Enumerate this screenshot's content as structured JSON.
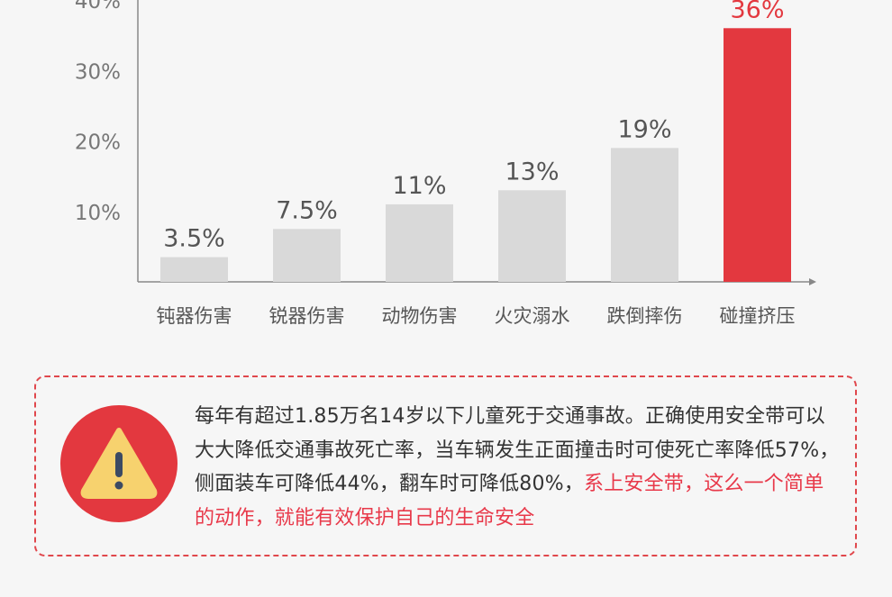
{
  "chart_data": {
    "type": "bar",
    "categories": [
      "钝器伤害",
      "锐器伤害",
      "动物伤害",
      "火灾溺水",
      "跌倒摔伤",
      "碰撞挤压"
    ],
    "values": [
      3.5,
      7.5,
      11,
      13,
      19,
      36
    ],
    "data_labels": [
      "3.5%",
      "7.5%",
      "11%",
      "13%",
      "19%",
      "36%"
    ],
    "yticks": [
      "10%",
      "20%",
      "30%",
      "40%"
    ],
    "ytick_values": [
      10,
      20,
      30,
      40
    ],
    "ylim": [
      0,
      40
    ],
    "grid": false,
    "colors": {
      "default": "#d9d9d9",
      "highlight": "#e3383f",
      "label": "#555555",
      "highlight_label": "#e3383f"
    },
    "highlight_index": 5
  },
  "notice": {
    "icon": "warning-triangle-icon",
    "text_normal": "每年有超过1.85万名14岁以下儿童死于交通事故。正确使用安全带可以大大降低交通事故死亡率，当车辆发生正面撞击时可使死亡率降低57%，侧面装车可降低44%，翻车时可降低80%，",
    "text_highlight": "系上安全带，这么一个简单的动作，就能有效保护自己的生命安全"
  }
}
